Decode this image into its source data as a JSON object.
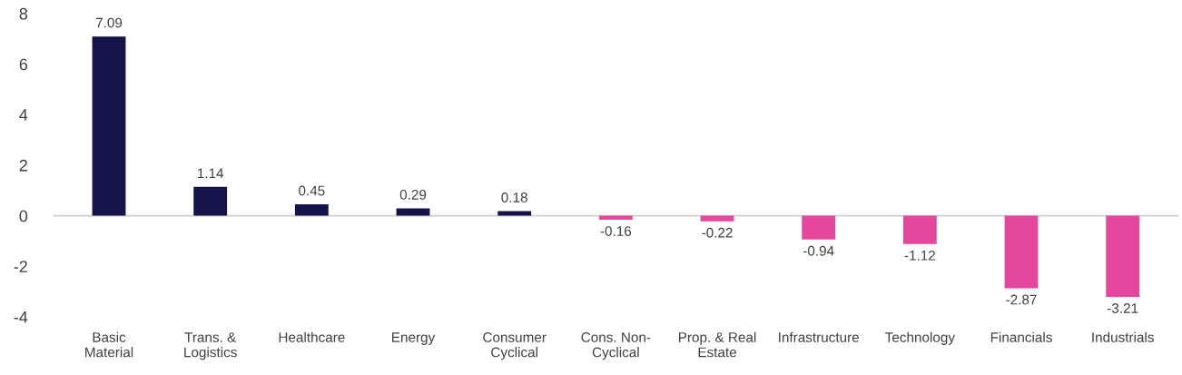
{
  "chart_data": {
    "type": "bar",
    "categories": [
      "Basic\nMaterial",
      "Trans. &\nLogistics",
      "Healthcare",
      "Energy",
      "Consumer\nCyclical",
      "Cons. Non-\nCyclical",
      "Prop. & Real\nEstate",
      "Infrastructure",
      "Technology",
      "Financials",
      "Industrials"
    ],
    "values": [
      7.09,
      1.14,
      0.45,
      0.29,
      0.18,
      -0.16,
      -0.22,
      -0.94,
      -1.12,
      -2.87,
      -3.21
    ],
    "colors": [
      "#14134a",
      "#14134a",
      "#14134a",
      "#14134a",
      "#14134a",
      "#e5479c",
      "#e5479c",
      "#e5479c",
      "#e5479c",
      "#e5479c",
      "#e5479c"
    ],
    "ylim": [
      -4,
      8
    ],
    "yticks": [
      -4,
      -2,
      0,
      2,
      4,
      6,
      8
    ],
    "ref_lines": [
      {
        "axis": "y",
        "value": 0,
        "color": "#d0d0d0"
      }
    ],
    "data_labels": true,
    "legend": false
  }
}
